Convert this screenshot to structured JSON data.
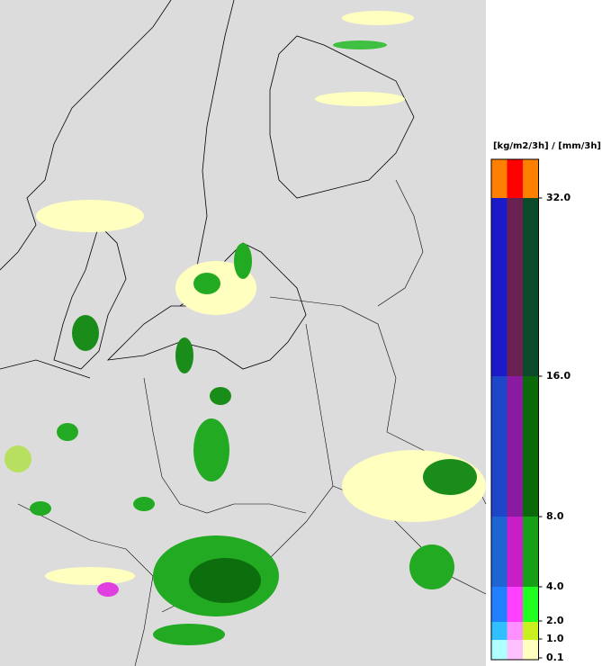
{
  "legend": {
    "unit": "[kg/m2/3h] / [mm/3h]",
    "labels": [
      "32.0",
      "16.0",
      "8.0",
      "4.0",
      "2.0",
      "1.0",
      "0.1"
    ]
  }
}
